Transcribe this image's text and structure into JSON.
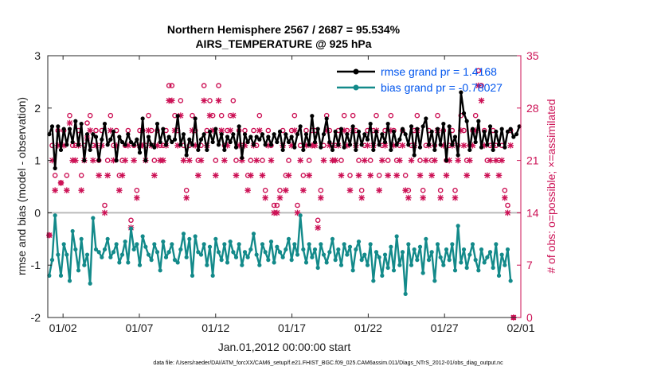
{
  "chart_data": {
    "type": "line",
    "title": "Northern Hemisphere 2567 / 2687 = 95.534%",
    "subtitle": "AIRS_TEMPERATURE @ 925 hPa",
    "xlabel": "Jan.01,2012 00:00:00 start",
    "ylabel": "rmse and bias (model - observation)",
    "y2label": "# of obs: o=possible; ×=assimilated",
    "footnote": "data file: /Users/raeder/DAI/ATM_forcXX/CAM6_setup/f.e21.FHIST_BGC.f09_025.CAM6assim.011/Diags_NTrS_2012-01/obs_diag_output.nc",
    "xlim": [
      0.5,
      31.5
    ],
    "ylim": [
      -2,
      3
    ],
    "y2lim": [
      0,
      35
    ],
    "x_ticks": [
      1.5,
      6.5,
      11.5,
      16.5,
      21.5,
      26.5,
      31.5
    ],
    "x_tick_labels": [
      "01/02",
      "01/07",
      "01/12",
      "01/17",
      "01/22",
      "01/27",
      "02/01"
    ],
    "y_ticks": [
      -2,
      -1,
      0,
      1,
      2,
      3
    ],
    "y_tick_labels": [
      "-2",
      "-1",
      "0",
      "1",
      "2",
      "3"
    ],
    "y2_ticks": [
      0,
      7,
      14,
      21,
      28,
      35
    ],
    "y2_tick_labels": [
      "0",
      "7",
      "14",
      "21",
      "28",
      "35"
    ],
    "zero_line": 0,
    "legend_position": "top-right",
    "colors": {
      "rmse": "#000000",
      "bias": "#138a8a",
      "obs": "#cc1155",
      "zero": "#bbbbbb"
    },
    "series": [
      {
        "name": "rmse grand pr = 1.4168",
        "key": "rmse",
        "values": [
          1.5,
          1.65,
          0.85,
          1.65,
          1.2,
          1.6,
          1.3,
          1.6,
          1.35,
          1.75,
          1.3,
          1.7,
          1.0,
          1.5,
          1.2,
          1.5,
          1.45,
          1.0,
          1.4,
          1.7,
          1.3,
          1.4,
          1.55,
          1.0,
          1.45,
          1.35,
          1.3,
          1.5,
          1.35,
          1.3,
          1.4,
          1.15,
          1.8,
          1.0,
          1.45,
          1.3,
          1.25,
          1.7,
          1.35,
          1.6,
          1.3,
          1.45,
          1.35,
          1.4,
          1.85,
          1.3,
          1.5,
          1.1,
          1.4,
          1.3,
          1.8,
          1.2,
          1.4,
          1.5,
          1.2,
          1.55,
          1.35,
          1.6,
          1.3,
          1.5,
          1.2,
          1.45,
          1.35,
          1.5,
          1.25,
          1.65,
          1.05,
          1.5,
          1.35,
          1.45,
          1.3,
          1.45,
          1.4,
          1.5,
          1.3,
          1.45,
          1.3,
          1.5,
          1.35,
          1.55,
          1.2,
          1.5,
          1.35,
          1.45,
          1.25,
          1.5,
          1.65,
          1.2,
          1.5,
          1.3,
          1.85,
          1.35,
          1.6,
          1.25,
          1.5,
          1.8,
          1.35,
          1.2,
          1.55,
          1.3,
          1.6,
          1.25,
          1.5,
          1.3,
          1.65,
          1.2,
          1.55,
          1.3,
          1.5,
          1.4,
          1.7,
          1.2,
          1.55,
          1.3,
          1.5,
          1.35,
          1.7,
          1.2,
          1.55,
          1.3,
          1.4,
          1.6,
          1.5,
          1.3,
          1.65,
          1.1,
          1.6,
          1.25,
          1.65,
          1.8,
          1.3,
          1.55,
          1.2,
          1.6,
          1.3,
          1.7,
          1.0,
          1.65,
          1.3,
          1.45,
          1.1,
          2.3,
          1.9,
          1.75,
          1.2,
          1.6,
          1.35,
          1.75,
          1.25,
          1.55,
          1.3,
          1.65,
          1.2,
          1.55,
          1.3,
          1.6,
          1.25,
          1.55,
          1.6,
          1.45,
          1.5,
          1.65
        ]
      },
      {
        "name": "bias grand pr = -0.78027",
        "key": "bias",
        "values": [
          -1.2,
          -0.9,
          -0.05,
          -0.8,
          -1.2,
          -0.6,
          -0.8,
          -1.3,
          -0.35,
          -0.7,
          -1.1,
          -0.5,
          -1.0,
          -0.8,
          -1.35,
          -0.1,
          -0.7,
          -0.75,
          -0.85,
          -0.7,
          -0.5,
          -0.85,
          -0.75,
          -0.6,
          -0.95,
          -0.8,
          -0.55,
          -0.95,
          -0.3,
          -0.7,
          -0.6,
          -1.0,
          -0.45,
          -0.65,
          -0.8,
          -0.9,
          -0.6,
          -0.75,
          -1.1,
          -0.55,
          -0.85,
          -0.75,
          -0.6,
          -0.9,
          -0.95,
          -0.7,
          -0.4,
          -0.85,
          -0.5,
          -1.2,
          -0.45,
          -0.75,
          -0.8,
          -0.6,
          -1.0,
          -0.65,
          -1.2,
          -0.5,
          -0.75,
          -0.9,
          -0.6,
          -0.95,
          -0.55,
          -0.75,
          -0.85,
          -0.6,
          -1.0,
          -0.75,
          -0.85,
          -0.7,
          -0.4,
          -0.8,
          -1.0,
          -0.6,
          -0.75,
          -0.9,
          -0.55,
          -0.95,
          -0.65,
          -0.75,
          -0.85,
          -0.7,
          -0.5,
          -0.9,
          -0.6,
          -0.8,
          -0.05,
          -0.7,
          -0.95,
          -0.6,
          -0.85,
          -0.7,
          -1.05,
          -0.6,
          -0.8,
          -0.95,
          -0.75,
          -0.5,
          -0.9,
          -0.7,
          -1.0,
          -0.6,
          -0.8,
          -0.65,
          -1.1,
          -0.7,
          -0.55,
          -0.9,
          -0.8,
          -1.0,
          -0.6,
          -1.3,
          -0.75,
          -0.85,
          -1.2,
          -0.8,
          -1.05,
          -0.65,
          -1.1,
          -0.45,
          -1.0,
          -0.75,
          -1.55,
          -0.6,
          -1.0,
          -0.7,
          -0.9,
          -0.65,
          -1.15,
          -0.5,
          -0.9,
          -0.75,
          -1.3,
          -0.6,
          -0.85,
          -1.0,
          -0.7,
          -0.9,
          -0.6,
          -1.1,
          -0.25,
          -0.95,
          -0.7,
          -1.05,
          -0.8,
          -0.6,
          -0.9,
          -1.1,
          -0.7,
          -0.95,
          -0.85,
          -0.75,
          -1.05,
          -0.6,
          -1.2,
          -0.8,
          -1.0,
          -0.7,
          -1.3
        ]
      },
      {
        "name": "possible observations",
        "key": "possible",
        "marker": "o",
        "axis": "right",
        "values": [
          11,
          23,
          19,
          25,
          18,
          25,
          19,
          27,
          23,
          23,
          25,
          19,
          23,
          26,
          27,
          23,
          25,
          21,
          25,
          15,
          21,
          27,
          23,
          25,
          19,
          21,
          23,
          25,
          13,
          23,
          17,
          25,
          25,
          23,
          27,
          25,
          21,
          25,
          23,
          23,
          25,
          31,
          31,
          27,
          25,
          29,
          23,
          17,
          23,
          27,
          25,
          21,
          23,
          31,
          25,
          29,
          27,
          21,
          31,
          27,
          23,
          25,
          27,
          29,
          21,
          25,
          23,
          25,
          19,
          21,
          25,
          23,
          27,
          21,
          17,
          25,
          23,
          15,
          15,
          17,
          25,
          19,
          21,
          25,
          27,
          15,
          23,
          19,
          25,
          21,
          25,
          25,
          13,
          17,
          23,
          27,
          25,
          23,
          23,
          25,
          21,
          27,
          25,
          19,
          27,
          25,
          21,
          17,
          23,
          25,
          21,
          25,
          27,
          19,
          23,
          25,
          21,
          27,
          25,
          21,
          23,
          25,
          19,
          17,
          23,
          25,
          27,
          21,
          17,
          23,
          25,
          21,
          23,
          27,
          17,
          25,
          21,
          23,
          25,
          17,
          23,
          27,
          25,
          21,
          23,
          25,
          27,
          33,
          31,
          25,
          21,
          23,
          25,
          23,
          21,
          23,
          17,
          15,
          25,
          0
        ]
      },
      {
        "name": "assimilated observations",
        "key": "assimilated",
        "marker": "x",
        "axis": "right",
        "values": [
          11,
          21,
          17,
          23,
          18,
          23,
          17,
          26,
          21,
          21,
          23,
          17,
          21,
          24,
          25,
          21,
          23,
          19,
          23,
          14,
          19,
          25,
          21,
          23,
          17,
          19,
          21,
          23,
          12,
          21,
          16,
          23,
          23,
          21,
          25,
          23,
          19,
          23,
          21,
          21,
          23,
          29,
          29,
          25,
          23,
          27,
          21,
          16,
          21,
          25,
          23,
          19,
          21,
          29,
          23,
          27,
          25,
          19,
          29,
          25,
          21,
          23,
          25,
          27,
          19,
          23,
          21,
          23,
          17,
          19,
          23,
          21,
          25,
          19,
          16,
          23,
          21,
          14,
          14,
          16,
          23,
          17,
          19,
          23,
          25,
          14,
          21,
          17,
          23,
          19,
          23,
          23,
          12,
          16,
          21,
          25,
          23,
          21,
          21,
          23,
          19,
          25,
          23,
          17,
          25,
          23,
          19,
          16,
          21,
          23,
          19,
          23,
          25,
          17,
          21,
          23,
          19,
          25,
          23,
          19,
          21,
          23,
          17,
          16,
          21,
          23,
          25,
          19,
          16,
          21,
          23,
          19,
          21,
          25,
          16,
          23,
          19,
          21,
          23,
          16,
          21,
          25,
          23,
          19,
          21,
          23,
          25,
          31,
          29,
          23,
          19,
          21,
          23,
          21,
          19,
          21,
          16,
          14,
          23,
          0
        ]
      }
    ]
  }
}
